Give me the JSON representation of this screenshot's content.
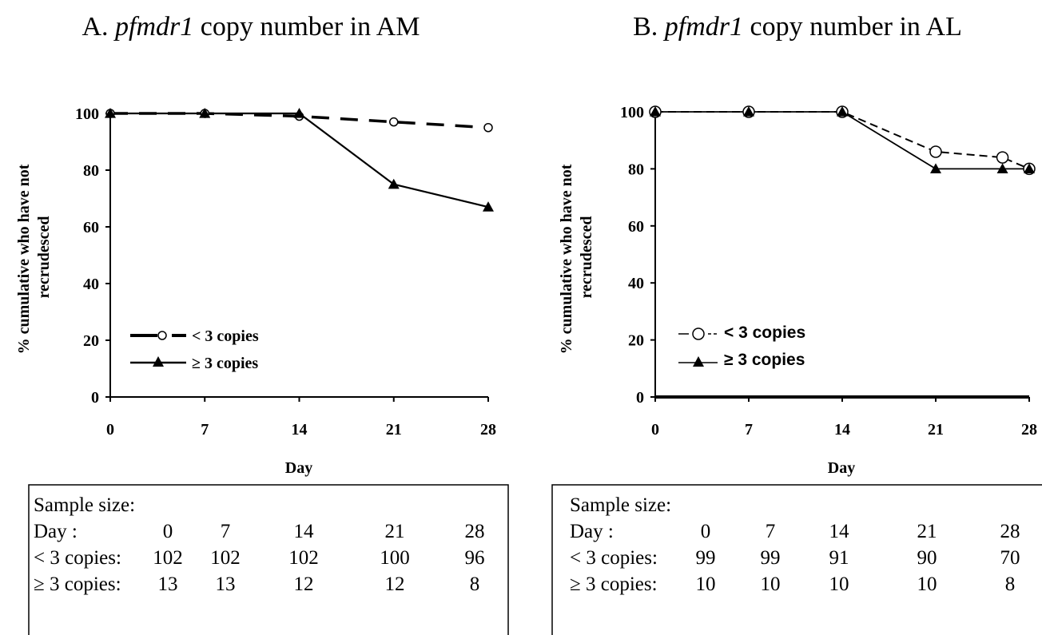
{
  "chart_data": [
    {
      "id": "A",
      "type": "line",
      "title_prefix": "A.",
      "title_gene": "pfmdr1",
      "title_suffix": "copy number in AM",
      "xlabel": "Day",
      "ylabel_line1": "% cumulative who have not",
      "ylabel_line2": "recrudesced",
      "x_ticks": [
        0,
        7,
        14,
        21,
        28
      ],
      "y_ticks": [
        0,
        20,
        40,
        60,
        80,
        100
      ],
      "xlim": [
        0,
        28
      ],
      "ylim": [
        0,
        100
      ],
      "legend_placement": "lower-left",
      "series": [
        {
          "name": "< 3 copies",
          "marker": "open-circle",
          "dash": "long-dash",
          "x": [
            0,
            7,
            14,
            21,
            28
          ],
          "y": [
            100,
            100,
            99,
            97,
            95
          ]
        },
        {
          "name": "≥ 3 copies",
          "marker": "filled-triangle",
          "dash": "solid",
          "x": [
            0,
            7,
            14,
            21,
            28
          ],
          "y": [
            100,
            100,
            100,
            75,
            67
          ]
        }
      ],
      "sample_table": {
        "heading": "Sample size:",
        "rows": [
          {
            "label": "Day :",
            "values": [
              "0",
              "7",
              "14",
              "21",
              "28"
            ]
          },
          {
            "label": "< 3 copies:",
            "values": [
              "102",
              "102",
              "102",
              "100",
              "96"
            ]
          },
          {
            "label": "≥ 3 copies:",
            "values": [
              "13",
              "13",
              "12",
              "12",
              "8"
            ]
          }
        ]
      }
    },
    {
      "id": "B",
      "type": "line",
      "title_prefix": "B.",
      "title_gene": "pfmdr1",
      "title_suffix": "copy number in AL",
      "xlabel": "Day",
      "ylabel_line1": "% cumulative who have not",
      "ylabel_line2": "recrudesced",
      "x_ticks": [
        0,
        7,
        14,
        21,
        28
      ],
      "y_ticks": [
        0,
        20,
        40,
        60,
        80,
        100
      ],
      "xlim": [
        0,
        28
      ],
      "ylim": [
        0,
        100
      ],
      "legend_placement": "lower-left",
      "series": [
        {
          "name": "< 3 copies",
          "marker": "open-circle",
          "dash": "short-dash",
          "x": [
            0,
            7,
            14,
            21,
            26,
            28
          ],
          "y": [
            100,
            100,
            100,
            86,
            84,
            80
          ]
        },
        {
          "name": "≥ 3 copies",
          "marker": "filled-triangle",
          "dash": "solid",
          "x": [
            0,
            7,
            14,
            21,
            26,
            28
          ],
          "y": [
            100,
            100,
            100,
            80,
            80,
            80
          ]
        }
      ],
      "sample_table": {
        "heading": "Sample size:",
        "rows": [
          {
            "label": "Day :",
            "values": [
              "0",
              "7",
              "14",
              "21",
              "28"
            ]
          },
          {
            "label": "< 3 copies:",
            "values": [
              "99",
              "99",
              "91",
              "90",
              "70"
            ]
          },
          {
            "label": "≥ 3 copies:",
            "values": [
              "10",
              "10",
              "10",
              "10",
              "8"
            ]
          }
        ]
      }
    }
  ]
}
